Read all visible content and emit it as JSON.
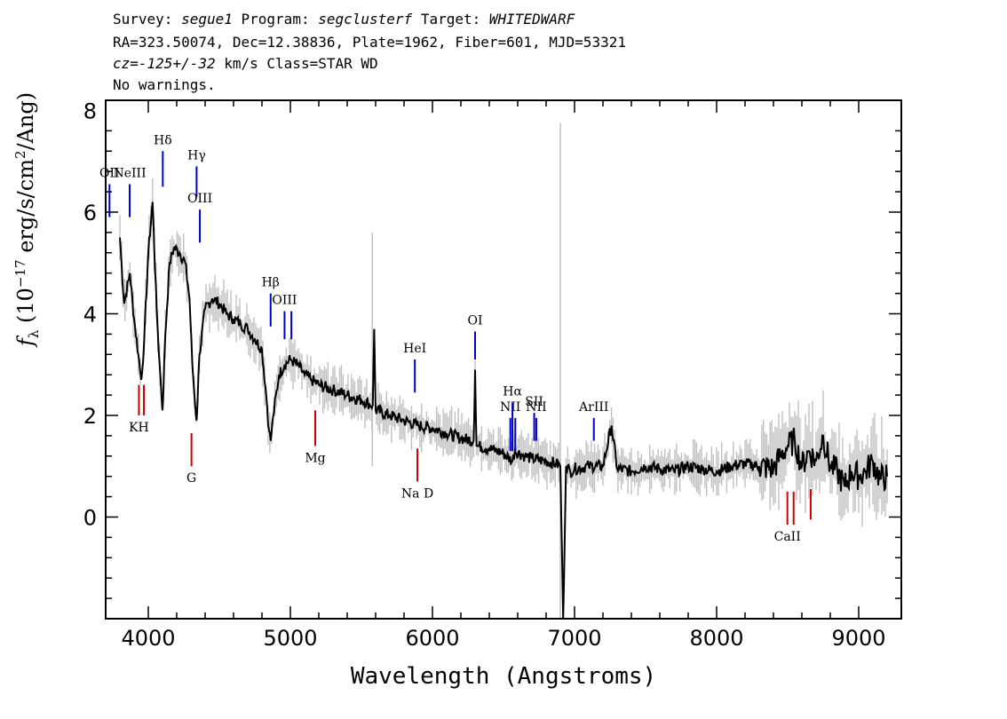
{
  "header": {
    "survey_label": "Survey:",
    "survey": "segue1",
    "program_label": "Program:",
    "program": "segclusterf",
    "target_label": "Target:",
    "target": "WHITEDWARF",
    "line2": "RA=323.50074, Dec=12.38836, Plate=1962, Fiber=601, MJD=53321",
    "cz_label": "cz=",
    "cz": "-125+/-32",
    "cz_unit_class": " km/s Class=STAR WD",
    "line4": "No warnings."
  },
  "chart_data": {
    "type": "line",
    "xlabel": "Wavelength (Angstroms)",
    "ylabel_prefix": "f",
    "ylabel_sub": "λ",
    "ylabel_text": " (10",
    "ylabel_exp": "−17",
    "ylabel_rest": " erg/s/cm",
    "ylabel_sq": "2",
    "ylabel_end": "/Ang)",
    "xlim": [
      3700,
      9300
    ],
    "ylim": [
      -2.0,
      8.2
    ],
    "xticks": [
      "4000",
      "5000",
      "6000",
      "7000",
      "8000",
      "9000"
    ],
    "xtick_values": [
      4000,
      5000,
      6000,
      7000,
      8000,
      9000
    ],
    "yticks": [
      "0",
      "2",
      "4",
      "6",
      "8"
    ],
    "ytick_values": [
      0,
      2,
      4,
      6,
      8
    ],
    "series": [
      {
        "color": "#000000",
        "x": [
          3800,
          3830,
          3870,
          3900,
          3930,
          3950,
          3970,
          4000,
          4030,
          4060,
          4080,
          4100,
          4120,
          4150,
          4180,
          4220,
          4260,
          4290,
          4310,
          4330,
          4340,
          4360,
          4400,
          4450,
          4500,
          4550,
          4600,
          4650,
          4700,
          4750,
          4800,
          4830,
          4850,
          4861,
          4880,
          4920,
          4960,
          5000,
          5050,
          5100,
          5150,
          5200,
          5300,
          5400,
          5500,
          5580,
          5590,
          5600,
          5700,
          5800,
          5900,
          6000,
          6100,
          6200,
          6290,
          6300,
          6310,
          6400,
          6500,
          6563,
          6580,
          6650,
          6700,
          6800,
          6870,
          6900,
          6920,
          6940,
          6970,
          7000,
          7100,
          7200,
          7260,
          7300,
          7400,
          7500,
          7600,
          7700,
          7800,
          7900,
          8000,
          8100,
          8200,
          8300,
          8400,
          8450,
          8500,
          8550,
          8600,
          8650,
          8700,
          8750,
          8800,
          8850,
          8900,
          8950,
          9000,
          9050,
          9100,
          9150,
          9200
        ],
        "y": [
          5.5,
          4.2,
          4.8,
          3.9,
          3.2,
          2.7,
          3.4,
          5.2,
          6.2,
          4.0,
          3.0,
          2.1,
          3.6,
          5.0,
          5.3,
          5.2,
          5.0,
          4.3,
          3.0,
          2.2,
          1.9,
          3.2,
          4.1,
          4.3,
          4.2,
          4.0,
          3.9,
          3.8,
          3.7,
          3.5,
          3.3,
          2.4,
          1.7,
          1.5,
          2.0,
          2.8,
          3.0,
          3.1,
          3.0,
          2.8,
          2.7,
          2.6,
          2.5,
          2.4,
          2.3,
          2.2,
          3.7,
          2.1,
          2.0,
          1.9,
          1.8,
          1.75,
          1.65,
          1.55,
          1.5,
          2.9,
          1.4,
          1.35,
          1.25,
          1.1,
          1.3,
          1.2,
          1.15,
          1.1,
          1.05,
          1.0,
          -2.0,
          1.0,
          0.9,
          0.95,
          1.0,
          1.0,
          1.8,
          0.95,
          0.9,
          1.0,
          0.95,
          0.9,
          1.0,
          0.95,
          0.9,
          1.0,
          1.05,
          1.0,
          0.95,
          1.2,
          1.4,
          1.5,
          1.0,
          1.3,
          1.1,
          1.6,
          1.0,
          0.9,
          0.6,
          0.9,
          0.8,
          0.9,
          1.1,
          0.75,
          0.8
        ]
      }
    ],
    "noise_color": "#c0c0c0",
    "emission_lines": [
      {
        "label": "OII",
        "x": 3727,
        "y0": 5.9,
        "y1": 6.55,
        "color": "#0000cc"
      },
      {
        "label": "NeIII",
        "x": 3869,
        "y0": 5.9,
        "y1": 6.55,
        "color": "#0000cc"
      },
      {
        "label": "Hδ",
        "x": 4102,
        "y0": 6.5,
        "y1": 7.2,
        "color": "#0000cc"
      },
      {
        "label": "Hγ",
        "x": 4340,
        "y0": 6.3,
        "y1": 6.9,
        "color": "#0000cc"
      },
      {
        "label": "OIII",
        "x": 4363,
        "y0": 5.4,
        "y1": 6.05,
        "color": "#0000cc"
      },
      {
        "label": "Hβ",
        "x": 4861,
        "y0": 3.75,
        "y1": 4.4,
        "color": "#0000cc"
      },
      {
        "label": "OIII",
        "x": 4959,
        "y0": 3.5,
        "y1": 4.05,
        "color": "#0000cc"
      },
      {
        "label": "",
        "x": 5007,
        "y0": 3.5,
        "y1": 4.05,
        "color": "#0000cc"
      },
      {
        "label": "HeI",
        "x": 5876,
        "y0": 2.45,
        "y1": 3.1,
        "color": "#0000cc"
      },
      {
        "label": "OI",
        "x": 6300,
        "y0": 3.1,
        "y1": 3.65,
        "color": "#0000cc"
      },
      {
        "label": "NII",
        "x": 6548,
        "y0": 1.3,
        "y1": 1.95,
        "color": "#0000cc"
      },
      {
        "label": "Hα",
        "x": 6563,
        "y0": 1.3,
        "y1": 2.25,
        "color": "#0000cc"
      },
      {
        "label": "",
        "x": 6583,
        "y0": 1.3,
        "y1": 1.95,
        "color": "#0000cc"
      },
      {
        "label": "SII",
        "x": 6716,
        "y0": 1.5,
        "y1": 2.05,
        "color": "#0000cc"
      },
      {
        "label": "NII",
        "x": 6731,
        "y0": 1.5,
        "y1": 1.95,
        "color": "#0000cc"
      },
      {
        "label": "ArIII",
        "x": 7136,
        "y0": 1.5,
        "y1": 1.95,
        "color": "#0000cc"
      }
    ],
    "absorption_lines": [
      {
        "label": "KH",
        "x": 3934,
        "y0": 2.0,
        "y1": 2.6,
        "color": "#cc0000"
      },
      {
        "label": "",
        "x": 3969,
        "y0": 2.0,
        "y1": 2.6,
        "color": "#cc0000"
      },
      {
        "label": "G",
        "x": 4304,
        "y0": 1.0,
        "y1": 1.65,
        "color": "#cc0000"
      },
      {
        "label": "Mg",
        "x": 5175,
        "y0": 1.4,
        "y1": 2.1,
        "color": "#cc0000"
      },
      {
        "label": "Na D",
        "x": 5894,
        "y0": 0.7,
        "y1": 1.35,
        "color": "#cc0000"
      },
      {
        "label": "CaII",
        "x": 8498,
        "y0": -0.15,
        "y1": 0.5,
        "color": "#cc0000"
      },
      {
        "label": "",
        "x": 8542,
        "y0": -0.15,
        "y1": 0.5,
        "color": "#cc0000"
      },
      {
        "label": "",
        "x": 8662,
        "y0": -0.05,
        "y1": 0.55,
        "color": "#cc0000"
      }
    ]
  }
}
